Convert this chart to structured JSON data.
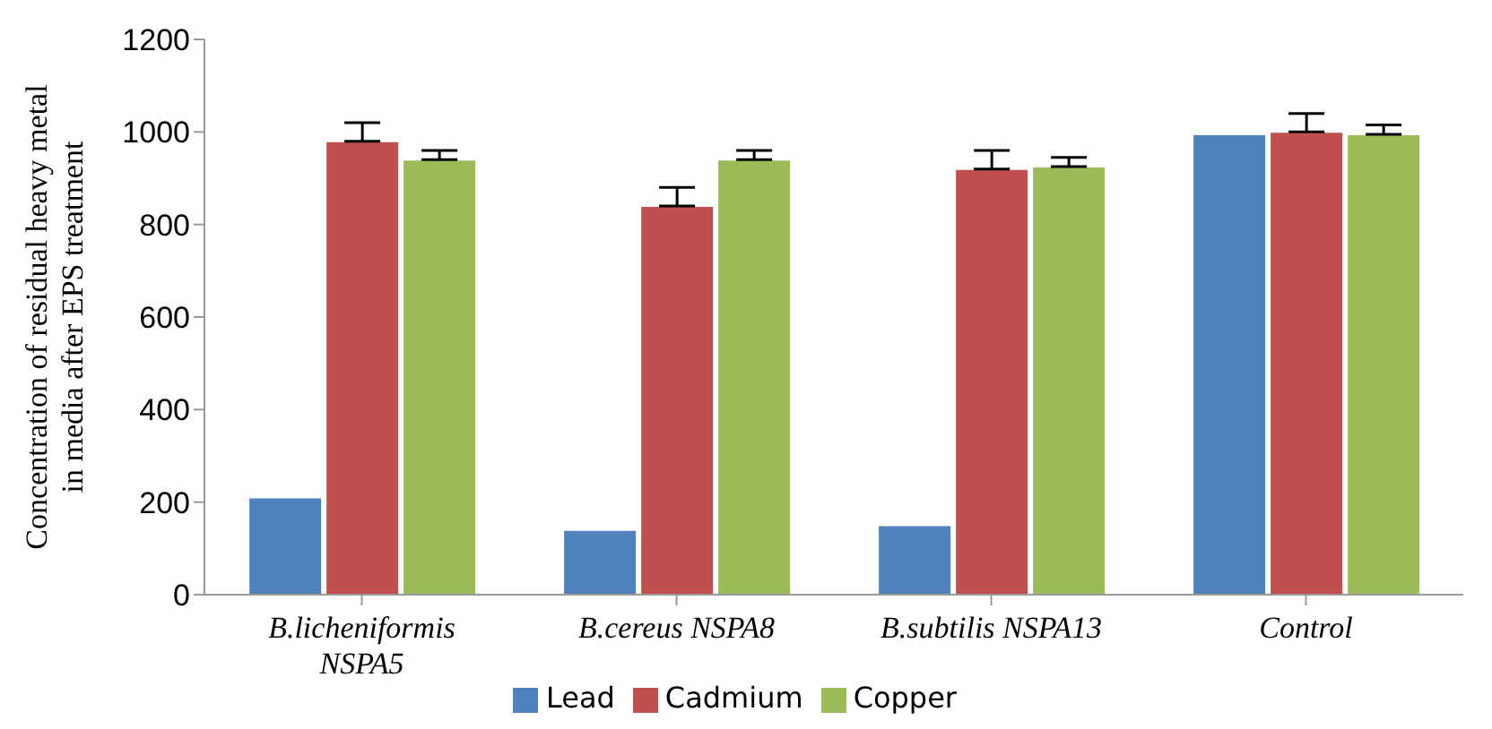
{
  "chart_data": {
    "type": "bar",
    "ylabel": "Concentration of residual heavy metal\nin media after EPS treatment",
    "categories": [
      "B.licheniformis NSPA5",
      "B.cereus NSPA8",
      "B.subtilis NSPA13",
      "Control"
    ],
    "series": [
      {
        "name": "Lead",
        "color": "#4f81bd",
        "values": [
          210,
          140,
          150,
          995
        ]
      },
      {
        "name": "Cadmium",
        "color": "#c0504d",
        "values": [
          980,
          840,
          920,
          1000
        ],
        "errors": [
          [
            980,
            1020
          ],
          [
            840,
            880
          ],
          [
            920,
            960
          ],
          [
            1000,
            1040
          ]
        ]
      },
      {
        "name": "Copper",
        "color": "#9bbb59",
        "values": [
          940,
          940,
          925,
          995
        ],
        "errors": [
          [
            940,
            960
          ],
          [
            940,
            960
          ],
          [
            925,
            945
          ],
          [
            995,
            1015
          ]
        ]
      }
    ],
    "ylim": [
      0,
      1200
    ],
    "yticks": [
      0,
      200,
      400,
      600,
      800,
      1000,
      1200
    ],
    "grid": false,
    "legend": "bottom"
  }
}
